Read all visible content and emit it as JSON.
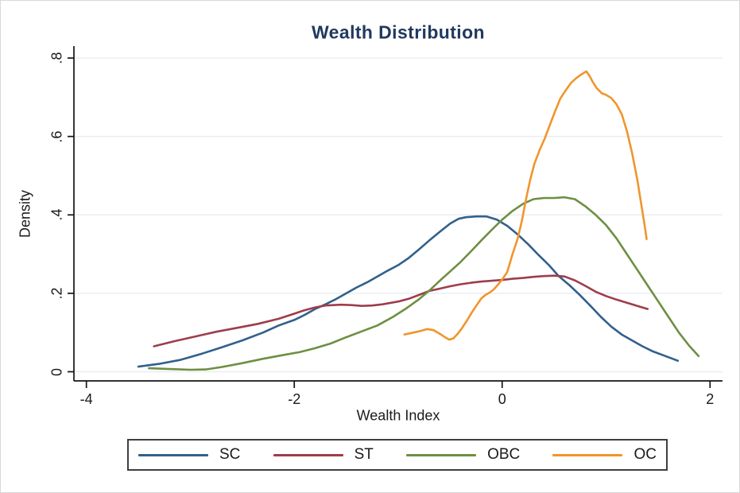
{
  "colors": {
    "title": "#21395f",
    "axis": "#141414",
    "gridline": "#e9eef3",
    "legend_border": "#3f3f3f",
    "background": "#ffffff"
  },
  "chart_data": {
    "type": "line",
    "title": "Wealth Distribution",
    "xlabel": "Wealth Index",
    "ylabel": "Density",
    "grid": "horizontal gridlines on",
    "legend_position": "bottom",
    "x_axis": {
      "range": [
        -4.12,
        2.12
      ],
      "ticks": [
        {
          "value": -4,
          "label": "-4"
        },
        {
          "value": -2,
          "label": "-2"
        },
        {
          "value": 0,
          "label": "0"
        },
        {
          "value": 2,
          "label": "2"
        }
      ]
    },
    "y_axis": {
      "range": [
        -0.0233,
        0.8304
      ],
      "ticks": [
        {
          "value": 0,
          "label": "0"
        },
        {
          "value": 0.2,
          "label": ".2"
        },
        {
          "value": 0.4,
          "label": ".4"
        },
        {
          "value": 0.6,
          "label": ".6"
        },
        {
          "value": 0.8,
          "label": ".8"
        }
      ]
    },
    "series": [
      {
        "name": "SC",
        "color": "#31608c",
        "points": [
          [
            -3.5,
            0.013
          ],
          [
            -3.3,
            0.02
          ],
          [
            -3.1,
            0.03
          ],
          [
            -2.9,
            0.045
          ],
          [
            -2.7,
            0.062
          ],
          [
            -2.5,
            0.08
          ],
          [
            -2.3,
            0.1
          ],
          [
            -2.15,
            0.118
          ],
          [
            -2.0,
            0.132
          ],
          [
            -1.9,
            0.145
          ],
          [
            -1.8,
            0.16
          ],
          [
            -1.7,
            0.172
          ],
          [
            -1.6,
            0.185
          ],
          [
            -1.5,
            0.2
          ],
          [
            -1.4,
            0.215
          ],
          [
            -1.3,
            0.228
          ],
          [
            -1.2,
            0.243
          ],
          [
            -1.1,
            0.258
          ],
          [
            -1.0,
            0.272
          ],
          [
            -0.9,
            0.29
          ],
          [
            -0.8,
            0.312
          ],
          [
            -0.7,
            0.335
          ],
          [
            -0.6,
            0.357
          ],
          [
            -0.5,
            0.378
          ],
          [
            -0.42,
            0.39
          ],
          [
            -0.35,
            0.394
          ],
          [
            -0.25,
            0.396
          ],
          [
            -0.15,
            0.396
          ],
          [
            -0.05,
            0.388
          ],
          [
            0.05,
            0.372
          ],
          [
            0.15,
            0.35
          ],
          [
            0.25,
            0.325
          ],
          [
            0.35,
            0.298
          ],
          [
            0.45,
            0.272
          ],
          [
            0.54,
            0.245
          ],
          [
            0.65,
            0.22
          ],
          [
            0.75,
            0.195
          ],
          [
            0.85,
            0.168
          ],
          [
            0.95,
            0.14
          ],
          [
            1.05,
            0.115
          ],
          [
            1.15,
            0.095
          ],
          [
            1.25,
            0.08
          ],
          [
            1.35,
            0.065
          ],
          [
            1.45,
            0.052
          ],
          [
            1.55,
            0.042
          ],
          [
            1.62,
            0.035
          ],
          [
            1.69,
            0.028
          ]
        ]
      },
      {
        "name": "ST",
        "color": "#9e3d4b",
        "points": [
          [
            -3.35,
            0.065
          ],
          [
            -3.15,
            0.078
          ],
          [
            -2.95,
            0.09
          ],
          [
            -2.75,
            0.102
          ],
          [
            -2.55,
            0.112
          ],
          [
            -2.35,
            0.122
          ],
          [
            -2.15,
            0.135
          ],
          [
            -2.0,
            0.148
          ],
          [
            -1.9,
            0.157
          ],
          [
            -1.8,
            0.164
          ],
          [
            -1.7,
            0.169
          ],
          [
            -1.55,
            0.171
          ],
          [
            -1.45,
            0.17
          ],
          [
            -1.35,
            0.168
          ],
          [
            -1.25,
            0.169
          ],
          [
            -1.15,
            0.172
          ],
          [
            -1.0,
            0.179
          ],
          [
            -0.9,
            0.186
          ],
          [
            -0.8,
            0.196
          ],
          [
            -0.7,
            0.206
          ],
          [
            -0.6,
            0.212
          ],
          [
            -0.5,
            0.218
          ],
          [
            -0.4,
            0.223
          ],
          [
            -0.3,
            0.227
          ],
          [
            -0.2,
            0.23
          ],
          [
            -0.1,
            0.232
          ],
          [
            0.0,
            0.234
          ],
          [
            0.1,
            0.237
          ],
          [
            0.2,
            0.239
          ],
          [
            0.3,
            0.242
          ],
          [
            0.4,
            0.244
          ],
          [
            0.5,
            0.245
          ],
          [
            0.6,
            0.243
          ],
          [
            0.7,
            0.233
          ],
          [
            0.8,
            0.219
          ],
          [
            0.9,
            0.204
          ],
          [
            1.0,
            0.193
          ],
          [
            1.1,
            0.184
          ],
          [
            1.2,
            0.176
          ],
          [
            1.3,
            0.168
          ],
          [
            1.4,
            0.16
          ]
        ]
      },
      {
        "name": "OBC",
        "color": "#6e8f42",
        "points": [
          [
            -3.4,
            0.009
          ],
          [
            -3.2,
            0.007
          ],
          [
            -3.0,
            0.005
          ],
          [
            -2.85,
            0.006
          ],
          [
            -2.7,
            0.012
          ],
          [
            -2.5,
            0.022
          ],
          [
            -2.3,
            0.033
          ],
          [
            -2.1,
            0.043
          ],
          [
            -1.95,
            0.05
          ],
          [
            -1.8,
            0.06
          ],
          [
            -1.65,
            0.072
          ],
          [
            -1.5,
            0.088
          ],
          [
            -1.35,
            0.103
          ],
          [
            -1.2,
            0.118
          ],
          [
            -1.05,
            0.14
          ],
          [
            -0.92,
            0.162
          ],
          [
            -0.8,
            0.185
          ],
          [
            -0.7,
            0.207
          ],
          [
            -0.6,
            0.232
          ],
          [
            -0.5,
            0.256
          ],
          [
            -0.4,
            0.28
          ],
          [
            -0.3,
            0.307
          ],
          [
            -0.2,
            0.335
          ],
          [
            -0.1,
            0.362
          ],
          [
            0.0,
            0.388
          ],
          [
            0.1,
            0.41
          ],
          [
            0.2,
            0.428
          ],
          [
            0.3,
            0.44
          ],
          [
            0.4,
            0.443
          ],
          [
            0.5,
            0.443
          ],
          [
            0.6,
            0.445
          ],
          [
            0.7,
            0.44
          ],
          [
            0.8,
            0.422
          ],
          [
            0.9,
            0.4
          ],
          [
            1.0,
            0.374
          ],
          [
            1.1,
            0.34
          ],
          [
            1.2,
            0.3
          ],
          [
            1.3,
            0.26
          ],
          [
            1.4,
            0.22
          ],
          [
            1.5,
            0.18
          ],
          [
            1.6,
            0.14
          ],
          [
            1.7,
            0.1
          ],
          [
            1.8,
            0.066
          ],
          [
            1.89,
            0.04
          ]
        ]
      },
      {
        "name": "OC",
        "color": "#f0952d",
        "points": [
          [
            -0.94,
            0.095
          ],
          [
            -0.87,
            0.099
          ],
          [
            -0.8,
            0.103
          ],
          [
            -0.72,
            0.109
          ],
          [
            -0.66,
            0.106
          ],
          [
            -0.6,
            0.097
          ],
          [
            -0.55,
            0.088
          ],
          [
            -0.51,
            0.082
          ],
          [
            -0.47,
            0.085
          ],
          [
            -0.43,
            0.096
          ],
          [
            -0.39,
            0.11
          ],
          [
            -0.34,
            0.13
          ],
          [
            -0.29,
            0.152
          ],
          [
            -0.24,
            0.172
          ],
          [
            -0.2,
            0.187
          ],
          [
            -0.16,
            0.196
          ],
          [
            -0.12,
            0.202
          ],
          [
            -0.08,
            0.21
          ],
          [
            -0.04,
            0.222
          ],
          [
            0.0,
            0.235
          ],
          [
            0.05,
            0.255
          ],
          [
            0.1,
            0.3
          ],
          [
            0.15,
            0.34
          ],
          [
            0.19,
            0.385
          ],
          [
            0.23,
            0.44
          ],
          [
            0.27,
            0.49
          ],
          [
            0.31,
            0.53
          ],
          [
            0.36,
            0.565
          ],
          [
            0.41,
            0.595
          ],
          [
            0.46,
            0.63
          ],
          [
            0.51,
            0.665
          ],
          [
            0.56,
            0.697
          ],
          [
            0.61,
            0.717
          ],
          [
            0.66,
            0.736
          ],
          [
            0.71,
            0.748
          ],
          [
            0.76,
            0.758
          ],
          [
            0.81,
            0.766
          ],
          [
            0.84,
            0.755
          ],
          [
            0.87,
            0.74
          ],
          [
            0.91,
            0.723
          ],
          [
            0.96,
            0.71
          ],
          [
            1.0,
            0.706
          ],
          [
            1.05,
            0.698
          ],
          [
            1.1,
            0.682
          ],
          [
            1.15,
            0.657
          ],
          [
            1.2,
            0.614
          ],
          [
            1.25,
            0.558
          ],
          [
            1.3,
            0.49
          ],
          [
            1.34,
            0.424
          ],
          [
            1.37,
            0.375
          ],
          [
            1.39,
            0.338
          ]
        ]
      }
    ]
  }
}
